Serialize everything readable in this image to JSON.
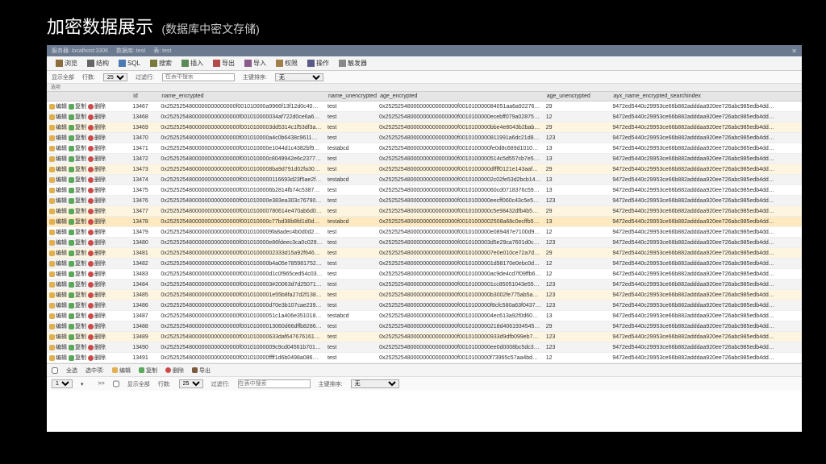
{
  "page": {
    "title": "加密数据展示",
    "subtitle": "(数据库中密文存储)"
  },
  "titlebar": {
    "server": "服务器: localhost:3306",
    "db": "数据库: test",
    "table": "表: test",
    "close": "✕"
  },
  "toolbar": [
    {
      "label": "浏览",
      "icon": "icon-browse"
    },
    {
      "label": "结构",
      "icon": "icon-struct"
    },
    {
      "label": "SQL",
      "icon": "icon-sql"
    },
    {
      "label": "搜索",
      "icon": "icon-search"
    },
    {
      "label": "插入",
      "icon": "icon-insert"
    },
    {
      "label": "导出",
      "icon": "icon-export"
    },
    {
      "label": "导入",
      "icon": "icon-import"
    },
    {
      "label": "权限",
      "icon": "icon-priv"
    },
    {
      "label": "操作",
      "icon": "icon-op"
    },
    {
      "label": "触发器",
      "icon": "icon-trig"
    }
  ],
  "toolbar2": {
    "showAll": "显示全部",
    "rows": "行数:",
    "rowsVal": "25",
    "filter": "过滤行:",
    "filterPlaceholder": "在表中搜索",
    "sort": "主键排序:",
    "sortVal": "无"
  },
  "smallbar": "选项",
  "columns": [
    "",
    "id",
    "name_encrypted",
    "name_unencrypted",
    "age_encrypted",
    "age_unencrypted",
    "ayx_name_encrypted_searchindex"
  ],
  "actions": {
    "edit": "编辑",
    "copy": "复制",
    "del": "删除"
  },
  "rows": [
    {
      "hl": false,
      "id": "13467",
      "ne": "0x2525254800000000000000f001010000a9966f13f12d0c40…",
      "nu": "test",
      "ae": "0x25252548000000000000000f001010000084051aa6a92276…",
      "au": "29",
      "si": "9472ed5440c29953ce66b882adddaa920ee726abc985edb4dd…"
    },
    {
      "hl": false,
      "id": "13468",
      "ne": "0x25252548000000000000000f001010000034af722d0ce6a6…",
      "nu": "test",
      "ae": "0x25252548000000000000000f0010100000ecebff079a02875…",
      "au": "12",
      "si": "9472ed5440c29953ce66b882adddaa920ee726abc985edb4dd…"
    },
    {
      "hl": true,
      "id": "13469",
      "ne": "0x25252548000000000000000f0010100003dd5314c1f53df3a…",
      "nu": "test",
      "ae": "0x25252548000000000000000f0010100000bbe4e8043b2babdb…",
      "au": "29",
      "si": "9472ed5440c29953ce66b882adddaa920ee726abc985edb4dd…"
    },
    {
      "hl": false,
      "id": "13470",
      "ne": "0x25252548000000000000000f001010000a4c0b6438c9611…",
      "nu": "test",
      "ae": "0x25252548000000000000000f0010100000811991a6dc21d879…",
      "au": "123",
      "si": "9472ed5440c29953ce66b882adddaa920ee726abc985edb4dd…"
    },
    {
      "hl": false,
      "id": "13471",
      "ne": "0x25252548000000000000000f001010000e1044d1c4382bf9…",
      "nu": "testabcd",
      "ae": "0x25252548000000000000000f0010100000fe0d8c689d1010b4…",
      "au": "13",
      "si": "9472ed5440c29953ce66b882adddaa920ee726abc985edb4dd…"
    },
    {
      "hl": false,
      "id": "13472",
      "ne": "0x25252548000000000000000f001010000c8049942e6c237729…",
      "nu": "test",
      "ae": "0x25252548000000000000000f0010100000514c5d557cb7e5b9…",
      "au": "13",
      "si": "9472ed5440c29953ce66b882adddaa920ee726abc985edb4dd…"
    },
    {
      "hl": true,
      "id": "13473",
      "ne": "0x25252548000000000000000f0010100008ba9d791d02fa303c…",
      "nu": "test",
      "ae": "0x25252548000000000000000f0010100000dffff0121e143aaf…",
      "au": "29",
      "si": "9472ed5440c29953ce66b882adddaa920ee726abc985edb4dd…"
    },
    {
      "hl": false,
      "id": "13474",
      "ne": "0x25252548000000000000000f0010100000116693d23f5ae2f7…",
      "nu": "testabcd",
      "ae": "0x25252548000000000000000f00101000002c02fe53d2bcb14f…",
      "au": "13",
      "si": "9472ed5440c29953ce66b882adddaa920ee726abc985edb4dd…"
    },
    {
      "hl": false,
      "id": "13475",
      "ne": "0x25252548000000000000000f0010100006b2814fb74c5387a…",
      "nu": "test",
      "ae": "0x25252548000000000000000f001010000060cd0718376c59…",
      "au": "13",
      "si": "9472ed5440c29953ce66b882adddaa920ee726abc985edb4dd…"
    },
    {
      "hl": false,
      "id": "13476",
      "ne": "0x25252548000000000000000f001010000e383ea303c767909…",
      "nu": "test",
      "ae": "0x25252548000000000000000f0010100000eecff060c43c5e50…",
      "au": "123",
      "si": "9472ed5440c29953ce66b882adddaa920ee726abc985edb4dd…"
    },
    {
      "hl": true,
      "id": "13477",
      "ne": "0x25252548000000000000000f001010000780614e470ab6d04f…",
      "nu": "test",
      "ae": "0x25252548000000000000000f0010100000c5e98432dfb4b59de…",
      "au": "29",
      "si": "9472ed5440c29953ce66b882adddaa920ee726abc985edb4dd…"
    },
    {
      "hl": false,
      "sel": true,
      "id": "13478",
      "ne": "0x25252548000000000000000f001010000c77bd38b8fd1d0d…",
      "nu": "testabcd",
      "ae": "0x25252548000000000000000f00101000002508a68c0ecffb5c…",
      "au": "13",
      "si": "9472ed5440c29953ce66b882adddaa920ee726abc985edb4dd…"
    },
    {
      "hl": false,
      "id": "13479",
      "ne": "0x25252548000000000000000f0010100009fa8adec4b0d0d226…",
      "nu": "test",
      "ae": "0x25252548000000000000000f0010100000e089487e7100d915b…",
      "au": "12",
      "si": "9472ed5440c29953ce66b882adddaa920ee726abc985edb4dd…"
    },
    {
      "hl": false,
      "id": "13480",
      "ne": "0x25252548000000000000000f001010000e86fdeec3ca0c029…",
      "nu": "test",
      "ae": "0x25252548000000000000000f0010100003d5e29ca7601d0c5…",
      "au": "123",
      "si": "9472ed5440c29953ce66b882adddaa920ee726abc985edb4dd…"
    },
    {
      "hl": true,
      "id": "13481",
      "ne": "0x25252548000000000000000f00101000002333d15a92f64659…",
      "nu": "test",
      "ae": "0x25252548000000000000000f00101000007e0e010ce72a7dec…",
      "au": "29",
      "si": "9472ed5440c29953ce66b882adddaa920ee726abc985edb4dd…"
    },
    {
      "hl": false,
      "id": "13482",
      "ne": "0x25252548000000000000000f001010000b4a05e785981752e5…",
      "nu": "test",
      "ae": "0x25252548000000000000000f00101000001d98170e0ebc0d077…",
      "au": "12",
      "si": "9472ed5440c29953ce66b882adddaa920ee726abc985edb4dd…"
    },
    {
      "hl": false,
      "id": "13483",
      "ne": "0x25252548000000000000000f001010000d1c0f965ced54c03…",
      "nu": "test",
      "ae": "0x25252548000000000000000f0010100000ac9de4cd7f09ffb65…",
      "au": "12",
      "si": "9472ed5440c29953ce66b882adddaa920ee726abc985edb4dd…"
    },
    {
      "hl": false,
      "id": "13484",
      "ne": "0x25252548000000000000000f0010100003#20063d7d2507175b…",
      "nu": "test",
      "ae": "0x25252548000000000000000f00101000001cc85051043e55be…",
      "au": "123",
      "si": "9472ed5440c29953ce66b882adddaa920ee726abc985edb4dd…"
    },
    {
      "hl": true,
      "id": "13485",
      "ne": "0x25252548000000000000000f0010100001e55b8fa27d2f138…",
      "nu": "test",
      "ae": "0x25252548000000000000000f0010100000b3002fe775ab5a1e9…",
      "au": "123",
      "si": "9472ed5440c29953ce66b882adddaa920ee726abc985edb4dd…"
    },
    {
      "hl": false,
      "id": "13486",
      "ne": "0x25252548000000000000000f001010000d70e3b107cae239c…",
      "nu": "test",
      "ae": "0x25252548000000000000000f0010100000f8cfc580a63f0437e…",
      "au": "123",
      "si": "9472ed5440c29953ce66b882adddaa920ee726abc985edb4dd…"
    },
    {
      "hl": false,
      "id": "13487",
      "ne": "0x25252548000000000000000f00101000051c1a406e3510182…",
      "nu": "testabcd",
      "ae": "0x25252548000000000000000f00101000004ec613a92f0d6082…",
      "au": "13",
      "si": "9472ed5440c29953ce66b882adddaa920ee726abc985edb4dd…"
    },
    {
      "hl": false,
      "id": "13488",
      "ne": "0x25252548000000000000000f00101000013060d66dffb8286f…",
      "nu": "test",
      "ae": "0x25252548000000000000000f0010100000218d4061934545a66…",
      "au": "29",
      "si": "9472ed5440c29953ce66b882adddaa920ee726abc985edb4dd…"
    },
    {
      "hl": true,
      "id": "13489",
      "ne": "0x25252548000000000000000f001010000633daf6476761618…",
      "nu": "test",
      "ae": "0x25252548000000000000000f0010100000933d9dfb099eb79c534…",
      "au": "123",
      "si": "9472ed5440c29953ce66b882adddaa920ee726abc985edb4dd…"
    },
    {
      "hl": false,
      "id": "13490",
      "ne": "0x25252548000000000000000f00101000009c9cd04561b7012b8…",
      "nu": "test",
      "ae": "0x25252548000000000000000f0010100000ee0d0008bc5dc3013…",
      "au": "123",
      "si": "9472ed5440c29953ce66b882adddaa920ee726abc985edb4dd…"
    },
    {
      "hl": false,
      "id": "13491",
      "ne": "0x25252548000000000000000f001010000ffff1d6b0498a086…",
      "nu": "test",
      "ae": "0x25252548000000000000000f0010100000f73965c57aa4bd2d…",
      "au": "12",
      "si": "9472ed5440c29953ce66b882adddaa920ee726abc985edb4dd…"
    }
  ],
  "footer": {
    "all": "全选",
    "checked": "选中项:",
    "edit": "编辑",
    "copy": "复制",
    "del": "删除",
    "export": "导出"
  },
  "pager": {
    "page": "1",
    "showAll": "显示全部",
    "rows": "行数:",
    "rowsVal": "25",
    "filter": "过滤行:",
    "filterPlaceholder": "在表中搜索",
    "sort": "主键排序:",
    "sortVal": "无"
  }
}
